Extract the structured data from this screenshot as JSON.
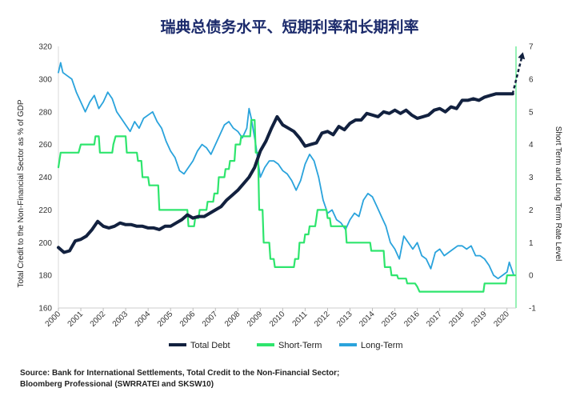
{
  "chart_data": {
    "type": "line",
    "title": "瑞典总债务水平、短期利率和长期利率",
    "ylabel_left": "Total Credit to the Non-Financial Sector as % of GDP",
    "ylabel_right": "Short Term and Long Term Rate Level",
    "left_axis": {
      "min": 160,
      "max": 320,
      "ticks": [
        "160",
        "180",
        "200",
        "220",
        "240",
        "260",
        "280",
        "300",
        "320"
      ]
    },
    "right_axis": {
      "min": -1,
      "max": 7,
      "ticks": [
        "-1",
        "0",
        "1",
        "2",
        "3",
        "4",
        "5",
        "6",
        "7"
      ]
    },
    "x_axis": {
      "min": 2000,
      "max": 2020.4,
      "ticks": [
        "2000",
        "2001",
        "2002",
        "2003",
        "2004",
        "2005",
        "2006",
        "2007",
        "2008",
        "2009",
        "2010",
        "2011",
        "2012",
        "2013",
        "2014",
        "2015",
        "2016",
        "2017",
        "2018",
        "2019",
        "2020"
      ]
    },
    "series": [
      {
        "name": "Total Debt",
        "axis": "left",
        "color": "#12213f",
        "points": [
          [
            2000.0,
            197
          ],
          [
            2000.25,
            194
          ],
          [
            2000.5,
            195
          ],
          [
            2000.75,
            201
          ],
          [
            2001.0,
            202
          ],
          [
            2001.25,
            204
          ],
          [
            2001.5,
            208
          ],
          [
            2001.75,
            213
          ],
          [
            2002.0,
            210
          ],
          [
            2002.25,
            209
          ],
          [
            2002.5,
            210
          ],
          [
            2002.75,
            212
          ],
          [
            2003.0,
            211
          ],
          [
            2003.25,
            211
          ],
          [
            2003.5,
            210
          ],
          [
            2003.75,
            210
          ],
          [
            2004.0,
            209
          ],
          [
            2004.25,
            209
          ],
          [
            2004.5,
            208
          ],
          [
            2004.75,
            210
          ],
          [
            2005.0,
            210
          ],
          [
            2005.25,
            212
          ],
          [
            2005.5,
            214
          ],
          [
            2005.75,
            217
          ],
          [
            2006.0,
            215
          ],
          [
            2006.25,
            216
          ],
          [
            2006.5,
            216
          ],
          [
            2006.75,
            218
          ],
          [
            2007.0,
            220
          ],
          [
            2007.25,
            222
          ],
          [
            2007.5,
            226
          ],
          [
            2007.75,
            229
          ],
          [
            2008.0,
            232
          ],
          [
            2008.25,
            236
          ],
          [
            2008.5,
            240
          ],
          [
            2008.75,
            246
          ],
          [
            2009.0,
            256
          ],
          [
            2009.25,
            262
          ],
          [
            2009.5,
            270
          ],
          [
            2009.75,
            277
          ],
          [
            2010.0,
            272
          ],
          [
            2010.25,
            270
          ],
          [
            2010.5,
            268
          ],
          [
            2010.75,
            264
          ],
          [
            2011.0,
            259
          ],
          [
            2011.25,
            260
          ],
          [
            2011.5,
            261
          ],
          [
            2011.75,
            267
          ],
          [
            2012.0,
            268
          ],
          [
            2012.25,
            266
          ],
          [
            2012.5,
            271
          ],
          [
            2012.75,
            269
          ],
          [
            2013.0,
            273
          ],
          [
            2013.25,
            275
          ],
          [
            2013.5,
            275
          ],
          [
            2013.75,
            279
          ],
          [
            2014.0,
            278
          ],
          [
            2014.25,
            277
          ],
          [
            2014.5,
            280
          ],
          [
            2014.75,
            279
          ],
          [
            2015.0,
            281
          ],
          [
            2015.25,
            279
          ],
          [
            2015.5,
            281
          ],
          [
            2015.75,
            278
          ],
          [
            2016.0,
            276
          ],
          [
            2016.25,
            277
          ],
          [
            2016.5,
            278
          ],
          [
            2016.75,
            281
          ],
          [
            2017.0,
            282
          ],
          [
            2017.25,
            280
          ],
          [
            2017.5,
            283
          ],
          [
            2017.75,
            282
          ],
          [
            2018.0,
            287
          ],
          [
            2018.25,
            287
          ],
          [
            2018.5,
            288
          ],
          [
            2018.75,
            287
          ],
          [
            2019.0,
            289
          ],
          [
            2019.25,
            290
          ],
          [
            2019.5,
            291
          ],
          [
            2019.75,
            291
          ],
          [
            2020.0,
            291
          ],
          [
            2020.25,
            291
          ]
        ]
      },
      {
        "name": "Short-Term",
        "axis": "right",
        "color": "#2ee56d",
        "points": [
          [
            2000.0,
            3.3
          ],
          [
            2000.1,
            3.75
          ],
          [
            2000.9,
            3.75
          ],
          [
            2001.0,
            4.0
          ],
          [
            2001.6,
            4.0
          ],
          [
            2001.65,
            4.25
          ],
          [
            2001.8,
            4.25
          ],
          [
            2001.85,
            3.75
          ],
          [
            2002.4,
            3.75
          ],
          [
            2002.45,
            4.0
          ],
          [
            2002.55,
            4.25
          ],
          [
            2003.0,
            4.25
          ],
          [
            2003.05,
            3.75
          ],
          [
            2003.5,
            3.75
          ],
          [
            2003.55,
            3.5
          ],
          [
            2003.7,
            3.5
          ],
          [
            2003.75,
            3.0
          ],
          [
            2004.0,
            3.0
          ],
          [
            2004.05,
            2.75
          ],
          [
            2004.45,
            2.75
          ],
          [
            2004.5,
            2.0
          ],
          [
            2005.75,
            2.0
          ],
          [
            2005.8,
            1.5
          ],
          [
            2006.05,
            1.5
          ],
          [
            2006.1,
            1.75
          ],
          [
            2006.25,
            1.75
          ],
          [
            2006.3,
            2.0
          ],
          [
            2006.6,
            2.0
          ],
          [
            2006.65,
            2.25
          ],
          [
            2006.9,
            2.25
          ],
          [
            2006.95,
            2.5
          ],
          [
            2007.1,
            2.5
          ],
          [
            2007.15,
            3.0
          ],
          [
            2007.4,
            3.0
          ],
          [
            2007.45,
            3.25
          ],
          [
            2007.6,
            3.25
          ],
          [
            2007.65,
            3.5
          ],
          [
            2007.85,
            3.5
          ],
          [
            2007.9,
            4.0
          ],
          [
            2008.1,
            4.0
          ],
          [
            2008.15,
            4.25
          ],
          [
            2008.55,
            4.25
          ],
          [
            2008.6,
            4.75
          ],
          [
            2008.75,
            4.75
          ],
          [
            2008.8,
            3.75
          ],
          [
            2008.9,
            3.75
          ],
          [
            2008.95,
            2.0
          ],
          [
            2009.1,
            2.0
          ],
          [
            2009.15,
            1.0
          ],
          [
            2009.4,
            1.0
          ],
          [
            2009.45,
            0.5
          ],
          [
            2009.6,
            0.5
          ],
          [
            2009.65,
            0.25
          ],
          [
            2010.5,
            0.25
          ],
          [
            2010.55,
            0.5
          ],
          [
            2010.7,
            0.5
          ],
          [
            2010.75,
            1.0
          ],
          [
            2010.95,
            1.0
          ],
          [
            2011.0,
            1.25
          ],
          [
            2011.15,
            1.25
          ],
          [
            2011.2,
            1.5
          ],
          [
            2011.45,
            1.5
          ],
          [
            2011.5,
            1.75
          ],
          [
            2011.55,
            2.0
          ],
          [
            2011.95,
            2.0
          ],
          [
            2012.0,
            1.75
          ],
          [
            2012.1,
            1.75
          ],
          [
            2012.15,
            1.5
          ],
          [
            2012.8,
            1.5
          ],
          [
            2012.85,
            1.0
          ],
          [
            2013.9,
            1.0
          ],
          [
            2013.95,
            0.75
          ],
          [
            2014.5,
            0.75
          ],
          [
            2014.55,
            0.25
          ],
          [
            2014.8,
            0.25
          ],
          [
            2014.85,
            0.0
          ],
          [
            2015.1,
            0.0
          ],
          [
            2015.15,
            -0.1
          ],
          [
            2015.5,
            -0.1
          ],
          [
            2015.55,
            -0.25
          ],
          [
            2015.9,
            -0.25
          ],
          [
            2016.0,
            -0.35
          ],
          [
            2016.1,
            -0.5
          ],
          [
            2018.95,
            -0.5
          ],
          [
            2019.0,
            -0.25
          ],
          [
            2019.95,
            -0.25
          ],
          [
            2020.0,
            0.0
          ],
          [
            2020.35,
            0.0
          ]
        ]
      },
      {
        "name": "Long-Term",
        "axis": "right",
        "color": "#2aa3dc",
        "points": [
          [
            2000.0,
            6.2
          ],
          [
            2000.1,
            6.5
          ],
          [
            2000.2,
            6.2
          ],
          [
            2000.4,
            6.1
          ],
          [
            2000.6,
            6.0
          ],
          [
            2000.8,
            5.6
          ],
          [
            2001.0,
            5.3
          ],
          [
            2001.2,
            5.0
          ],
          [
            2001.4,
            5.3
          ],
          [
            2001.6,
            5.5
          ],
          [
            2001.8,
            5.1
          ],
          [
            2002.0,
            5.3
          ],
          [
            2002.2,
            5.6
          ],
          [
            2002.4,
            5.4
          ],
          [
            2002.6,
            5.0
          ],
          [
            2002.8,
            4.8
          ],
          [
            2003.0,
            4.6
          ],
          [
            2003.2,
            4.4
          ],
          [
            2003.4,
            4.7
          ],
          [
            2003.6,
            4.5
          ],
          [
            2003.8,
            4.8
          ],
          [
            2004.0,
            4.9
          ],
          [
            2004.2,
            5.0
          ],
          [
            2004.4,
            4.7
          ],
          [
            2004.6,
            4.5
          ],
          [
            2004.8,
            4.1
          ],
          [
            2005.0,
            3.8
          ],
          [
            2005.2,
            3.6
          ],
          [
            2005.4,
            3.2
          ],
          [
            2005.6,
            3.1
          ],
          [
            2005.8,
            3.3
          ],
          [
            2006.0,
            3.5
          ],
          [
            2006.2,
            3.8
          ],
          [
            2006.4,
            4.0
          ],
          [
            2006.6,
            3.9
          ],
          [
            2006.8,
            3.7
          ],
          [
            2007.0,
            4.0
          ],
          [
            2007.2,
            4.3
          ],
          [
            2007.4,
            4.6
          ],
          [
            2007.6,
            4.7
          ],
          [
            2007.8,
            4.5
          ],
          [
            2008.0,
            4.4
          ],
          [
            2008.2,
            4.2
          ],
          [
            2008.4,
            4.5
          ],
          [
            2008.5,
            5.1
          ],
          [
            2008.6,
            4.8
          ],
          [
            2008.8,
            4.0
          ],
          [
            2008.9,
            3.5
          ],
          [
            2009.0,
            3.0
          ],
          [
            2009.2,
            3.3
          ],
          [
            2009.4,
            3.5
          ],
          [
            2009.6,
            3.5
          ],
          [
            2009.8,
            3.4
          ],
          [
            2010.0,
            3.2
          ],
          [
            2010.2,
            3.1
          ],
          [
            2010.4,
            2.9
          ],
          [
            2010.6,
            2.6
          ],
          [
            2010.8,
            2.9
          ],
          [
            2011.0,
            3.4
          ],
          [
            2011.2,
            3.7
          ],
          [
            2011.4,
            3.5
          ],
          [
            2011.6,
            3.0
          ],
          [
            2011.8,
            2.3
          ],
          [
            2012.0,
            1.9
          ],
          [
            2012.2,
            2.0
          ],
          [
            2012.4,
            1.7
          ],
          [
            2012.6,
            1.6
          ],
          [
            2012.8,
            1.4
          ],
          [
            2013.0,
            1.7
          ],
          [
            2013.2,
            1.9
          ],
          [
            2013.4,
            1.8
          ],
          [
            2013.6,
            2.3
          ],
          [
            2013.8,
            2.5
          ],
          [
            2014.0,
            2.4
          ],
          [
            2014.2,
            2.1
          ],
          [
            2014.4,
            1.8
          ],
          [
            2014.6,
            1.5
          ],
          [
            2014.8,
            1.0
          ],
          [
            2015.0,
            0.8
          ],
          [
            2015.2,
            0.5
          ],
          [
            2015.4,
            1.2
          ],
          [
            2015.6,
            1.0
          ],
          [
            2015.8,
            0.8
          ],
          [
            2016.0,
            1.0
          ],
          [
            2016.2,
            0.6
          ],
          [
            2016.4,
            0.5
          ],
          [
            2016.6,
            0.2
          ],
          [
            2016.8,
            0.7
          ],
          [
            2017.0,
            0.8
          ],
          [
            2017.2,
            0.6
          ],
          [
            2017.4,
            0.7
          ],
          [
            2017.6,
            0.8
          ],
          [
            2017.8,
            0.9
          ],
          [
            2018.0,
            0.9
          ],
          [
            2018.2,
            0.8
          ],
          [
            2018.4,
            0.9
          ],
          [
            2018.6,
            0.6
          ],
          [
            2018.8,
            0.6
          ],
          [
            2019.0,
            0.5
          ],
          [
            2019.2,
            0.3
          ],
          [
            2019.4,
            0.0
          ],
          [
            2019.6,
            -0.1
          ],
          [
            2019.8,
            0.0
          ],
          [
            2020.0,
            0.1
          ],
          [
            2020.1,
            0.4
          ],
          [
            2020.2,
            0.2
          ],
          [
            2020.3,
            0.0
          ]
        ]
      }
    ],
    "legend": {
      "position": "bottom",
      "items": [
        {
          "label": "Total Debt",
          "color": "#12213f"
        },
        {
          "label": "Short-Term",
          "color": "#2ee56d"
        },
        {
          "label": "Long-Term",
          "color": "#2aa3dc"
        }
      ]
    },
    "projection": {
      "from": [
        2020.25,
        291
      ],
      "to_right_value": 6.75,
      "color": "#12213f"
    },
    "grid": false
  },
  "source": {
    "line1": "Source: Bank for International Settlements, Total Credit to the Non-Financial Sector;",
    "line2": "Bloomberg Professional (SWRRATEI and SKSW10)"
  }
}
